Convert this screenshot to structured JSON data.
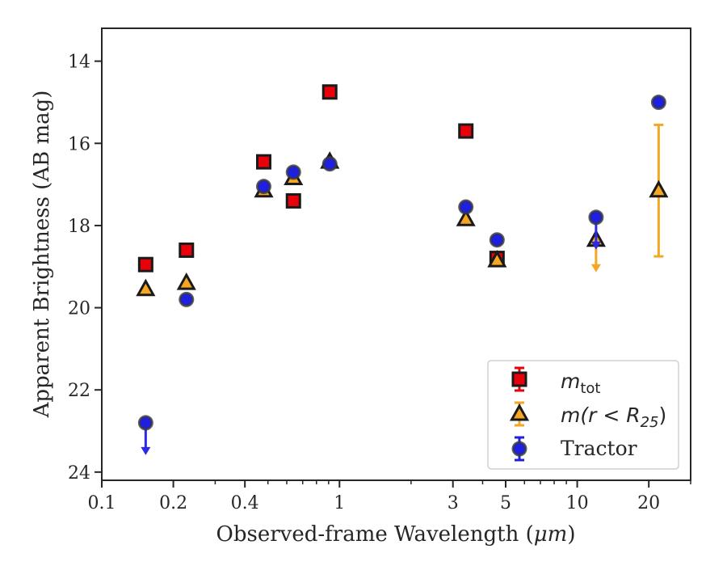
{
  "chart_data": {
    "type": "scatter",
    "xlabel_main": "Observed-frame Wavelength (",
    "xlabel_unit": "μm",
    "xlabel_tail": ")",
    "ylabel": "Apparent Brightness (AB mag)",
    "x_scale": "log",
    "xlim": [
      0.1,
      30
    ],
    "ylim": [
      24.2,
      13.2
    ],
    "y_inverted": true,
    "grid": false,
    "legend_position": "lower-right",
    "x_ticks": [
      {
        "value": 0.1,
        "label": "0.1"
      },
      {
        "value": 0.2,
        "label": "0.2"
      },
      {
        "value": 0.4,
        "label": "0.4"
      },
      {
        "value": 1,
        "label": "1"
      },
      {
        "value": 3,
        "label": "3"
      },
      {
        "value": 5,
        "label": "5"
      },
      {
        "value": 10,
        "label": "10"
      },
      {
        "value": 20,
        "label": "20"
      }
    ],
    "x_minor_ticks": [
      0.3,
      0.5,
      0.6,
      0.7,
      0.8,
      0.9,
      2,
      4,
      6,
      7,
      8,
      9,
      30
    ],
    "y_ticks": [
      {
        "value": 14,
        "label": "14"
      },
      {
        "value": 16,
        "label": "16"
      },
      {
        "value": 18,
        "label": "18"
      },
      {
        "value": 20,
        "label": "20"
      },
      {
        "value": 22,
        "label": "22"
      },
      {
        "value": 24,
        "label": "24"
      }
    ],
    "series": [
      {
        "key": "mtot",
        "legend_symbol": "m",
        "legend_sub": "tot",
        "marker": "square",
        "fill": "#e8000b",
        "edge": "#1a1a1a",
        "points": [
          {
            "x": 0.153,
            "y": 18.95
          },
          {
            "x": 0.227,
            "y": 18.6
          },
          {
            "x": 0.48,
            "y": 16.45
          },
          {
            "x": 0.64,
            "y": 17.4
          },
          {
            "x": 0.91,
            "y": 14.75
          },
          {
            "x": 3.4,
            "y": 15.7
          },
          {
            "x": 4.6,
            "y": 18.8
          }
        ]
      },
      {
        "key": "mr25",
        "legend_symbol": "m(r < R",
        "legend_sub": "25",
        "legend_tail": ")",
        "marker": "triangle",
        "fill": "#f5a623",
        "edge": "#1a1a1a",
        "points": [
          {
            "x": 0.153,
            "y": 19.55
          },
          {
            "x": 0.227,
            "y": 19.4
          },
          {
            "x": 0.48,
            "y": 17.15
          },
          {
            "x": 0.64,
            "y": 16.85
          },
          {
            "x": 0.91,
            "y": 16.45
          },
          {
            "x": 3.4,
            "y": 17.85
          },
          {
            "x": 4.6,
            "y": 18.85
          },
          {
            "x": 12.0,
            "y": 18.35,
            "upper_limit": true
          },
          {
            "x": 22.0,
            "y": 17.15,
            "yerr_low": 15.55,
            "yerr_high": 18.75
          }
        ]
      },
      {
        "key": "tractor",
        "legend_symbol": "Tractor",
        "marker": "circle",
        "fill": "#1f1fe0",
        "edge": "#3a3a3a",
        "points": [
          {
            "x": 0.153,
            "y": 22.8,
            "upper_limit": true
          },
          {
            "x": 0.227,
            "y": 19.8
          },
          {
            "x": 0.48,
            "y": 17.05
          },
          {
            "x": 0.64,
            "y": 16.7
          },
          {
            "x": 0.91,
            "y": 16.5
          },
          {
            "x": 3.4,
            "y": 17.55
          },
          {
            "x": 4.6,
            "y": 18.35
          },
          {
            "x": 12.0,
            "y": 17.8,
            "upper_limit": true
          },
          {
            "x": 22.0,
            "y": 15.0
          }
        ]
      }
    ]
  }
}
